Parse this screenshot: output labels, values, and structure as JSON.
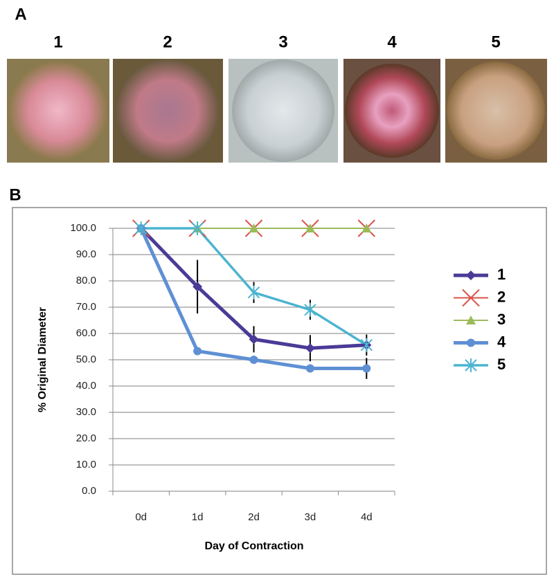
{
  "panel_a": {
    "label": "A",
    "wells": [
      "1",
      "2",
      "3",
      "4",
      "5"
    ]
  },
  "panel_b": {
    "label": "B"
  },
  "chart_data": {
    "type": "line",
    "y_label": "% Original Diameter",
    "x_label": "Day of Contraction",
    "categories": [
      "0d",
      "1d",
      "2d",
      "3d",
      "4d"
    ],
    "ylim": [
      0,
      100
    ],
    "yticks": [
      {
        "value": 0,
        "label": "0.0"
      },
      {
        "value": 10,
        "label": "10.0"
      },
      {
        "value": 20,
        "label": "20.0"
      },
      {
        "value": 30,
        "label": "30.0"
      },
      {
        "value": 40,
        "label": "40.0"
      },
      {
        "value": 50,
        "label": "50.0"
      },
      {
        "value": 60,
        "label": "60.0"
      },
      {
        "value": 70,
        "label": "70.0"
      },
      {
        "value": 80,
        "label": "80.0"
      },
      {
        "value": 90,
        "label": "90.0"
      },
      {
        "value": 100,
        "label": "100.0"
      }
    ],
    "grid": true,
    "series": [
      {
        "name": "1",
        "color": "#4b3a96",
        "marker": "diamond",
        "values": [
          100,
          77.8,
          57.8,
          54.4,
          55.6
        ],
        "errors": [
          null,
          10.2,
          5,
          5,
          4
        ]
      },
      {
        "name": "2",
        "color": "#d9534a",
        "marker": "x",
        "values": [
          100,
          100,
          100,
          100,
          100
        ],
        "errors": [
          null,
          null,
          null,
          null,
          null
        ]
      },
      {
        "name": "3",
        "color": "#9bbb59",
        "marker": "triangle",
        "values": [
          100,
          100,
          100,
          100,
          100
        ],
        "errors": [
          null,
          null,
          null,
          null,
          null
        ]
      },
      {
        "name": "4",
        "color": "#5f90d4",
        "marker": "circle",
        "values": [
          100,
          53.3,
          50,
          46.7,
          46.7
        ],
        "errors": [
          null,
          null,
          null,
          null,
          4
        ]
      },
      {
        "name": "5",
        "color": "#4bb4d0",
        "marker": "asterisk",
        "values": [
          100,
          100,
          75.6,
          69,
          55.6
        ],
        "errors": [
          null,
          null,
          4,
          3.8,
          null
        ]
      }
    ]
  }
}
